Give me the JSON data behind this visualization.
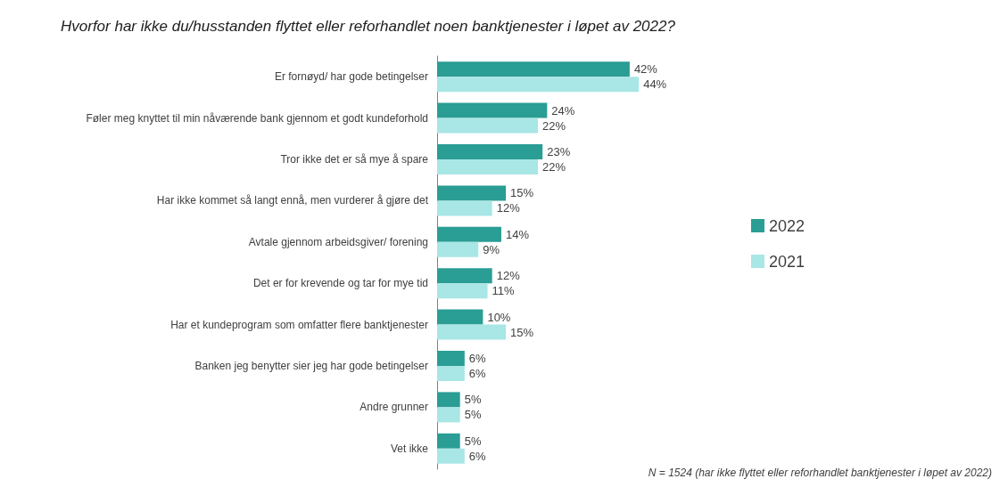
{
  "chart_data": {
    "type": "bar",
    "orientation": "horizontal",
    "title": "Hvorfor har ikke du/husstanden flyttet eller reforhandlet noen banktjenester i løpet av 2022?",
    "categories": [
      "Er fornøyd/ har gode betingelser",
      "Føler meg knyttet til min nåværende bank gjennom et godt kundeforhold",
      "Tror ikke det er så mye å spare",
      "Har ikke kommet så langt ennå, men vurderer å gjøre det",
      "Avtale gjennom arbeidsgiver/ forening",
      "Det er for krevende og tar for mye tid",
      "Har et kundeprogram som omfatter flere banktjenester",
      "Banken jeg benytter sier jeg har gode betingelser",
      "Andre grunner",
      "Vet ikke"
    ],
    "series": [
      {
        "name": "2022",
        "color": "#2a9d94",
        "values": [
          42,
          24,
          23,
          15,
          14,
          12,
          10,
          6,
          5,
          5
        ],
        "value_labels": [
          "42%",
          "24%",
          "23%",
          "15%",
          "14%",
          "12%",
          "10%",
          "6%",
          "5%",
          "5%"
        ]
      },
      {
        "name": "2021",
        "color": "#a9e6e6",
        "values": [
          44,
          22,
          22,
          12,
          9,
          11,
          15,
          6,
          5,
          6
        ],
        "value_labels": [
          "44%",
          "22%",
          "22%",
          "12%",
          "9%",
          "11%",
          "15%",
          "6%",
          "5%",
          "6%"
        ]
      }
    ],
    "legend": "right",
    "tick_labels": "y",
    "annotations": [
      "N = 1524 (har ikke flyttet eller reforhandlet banktjenester i løpet av 2022)"
    ]
  }
}
